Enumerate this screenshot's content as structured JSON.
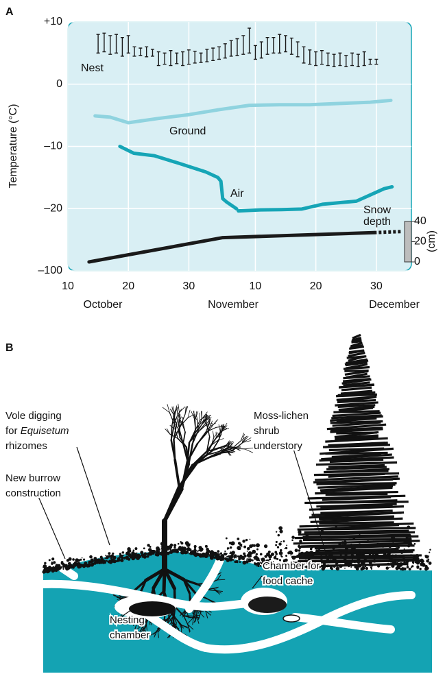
{
  "chart_data": {
    "type": "line",
    "panel_label": "A",
    "y_label": "Temperature (°C)",
    "y2_label": "(cm)",
    "xlim": [
      10,
      66.8
    ],
    "xticks": [
      10,
      20,
      30,
      {
        "value": 41,
        "label": "10"
      },
      {
        "value": 51,
        "label": "20"
      },
      {
        "value": 61,
        "label": "30"
      }
    ],
    "month_labels": [
      "October",
      "November",
      "December"
    ],
    "ylim": [
      -100,
      10
    ],
    "yticks": [
      {
        "value": 10,
        "label": "+10"
      },
      0,
      {
        "value": -10,
        "label": "–10"
      },
      {
        "value": -20,
        "label": "–20"
      },
      {
        "value": -100,
        "label": "–100"
      }
    ],
    "y2lim": [
      0,
      40
    ],
    "y2ticks": [
      0,
      20,
      40
    ],
    "grid": true,
    "plot_background": "#d9eff4",
    "series": [
      {
        "name": "Nest",
        "type": "range",
        "color": "#1a1a1a",
        "x": [
          15,
          16,
          17,
          18,
          19,
          20,
          21,
          22,
          23,
          24,
          25,
          26,
          27,
          28,
          29,
          30,
          31,
          32,
          33,
          34,
          35,
          36,
          37,
          38,
          39,
          40,
          41,
          42,
          43,
          44,
          45,
          46,
          47,
          48,
          49,
          50,
          51,
          52,
          53,
          54,
          55,
          56,
          57,
          58,
          59,
          60,
          61
        ],
        "low": [
          5,
          5.2,
          4.8,
          5,
          4.5,
          5,
          4.5,
          4.6,
          4.4,
          4.5,
          3,
          3.2,
          3,
          3.3,
          3,
          3.2,
          3.4,
          3.5,
          3.6,
          3.8,
          4,
          4.2,
          4.5,
          4.6,
          4.8,
          5,
          4,
          4.2,
          4.8,
          5,
          5,
          5.2,
          4.8,
          4.4,
          3.4,
          3.2,
          3,
          3.2,
          3,
          2.8,
          3,
          2.8,
          3,
          2.8,
          3,
          3.2,
          3.2
        ],
        "high": [
          8,
          8.2,
          7.8,
          8,
          7.5,
          7.8,
          6,
          5.8,
          6,
          5.6,
          5.2,
          5,
          5.4,
          5,
          5.2,
          5.5,
          5.3,
          5,
          5.6,
          5.8,
          6,
          6.5,
          7,
          7.3,
          7.8,
          9,
          6.2,
          6.8,
          7.5,
          7.5,
          8,
          7.8,
          7.4,
          6.8,
          6,
          5.5,
          5.2,
          5.4,
          5,
          4.8,
          5,
          4.6,
          5,
          4.8,
          5.2,
          4,
          4
        ]
      },
      {
        "name": "Ground",
        "type": "line",
        "color": "#8fd3df",
        "x": [
          14.5,
          17,
          20,
          25,
          30,
          35,
          40,
          45,
          50,
          55,
          60,
          63.4
        ],
        "values": [
          -5.1,
          -5.3,
          -6.2,
          -5.5,
          -4.9,
          -4.1,
          -3.4,
          -3.3,
          -3.3,
          -3.1,
          -2.9,
          -2.6
        ]
      },
      {
        "name": "Air",
        "type": "line",
        "color": "#16a5b6",
        "x": [
          18.6,
          20.9,
          24.3,
          28.3,
          32.8,
          34.8,
          35.3,
          35.6,
          36.2,
          37.9,
          null,
          38.2,
          41.9,
          45.3,
          48.7,
          52.1,
          55.5,
          57.7,
          60,
          62.3,
          63.6
        ],
        "values": [
          -10,
          -11.1,
          -11.5,
          -12.7,
          -14.1,
          -15,
          -15.6,
          -18.4,
          -18.9,
          -20.3,
          null,
          -23,
          -21.7,
          -21.3,
          -20.5,
          -19.3,
          -19,
          -18.8,
          -17.8,
          -16.8,
          -16.5
        ]
      },
      {
        "name": "Snow depth",
        "type": "line",
        "axis": "y2",
        "color": "#1a1a1a",
        "x": [
          13.5,
          35.6,
          60.6,
          65.1
        ],
        "values": [
          0,
          24,
          29,
          30
        ],
        "segment_styles": [
          "solid",
          "solid",
          "dashed"
        ]
      }
    ]
  },
  "panel_b": {
    "label": "B",
    "annotations": [
      {
        "lines": [
          "Vole digging",
          {
            "text": "for ",
            "italic": "Equisetum"
          },
          "rhizomes"
        ]
      },
      {
        "lines": [
          "New burrow",
          "construction"
        ]
      },
      {
        "lines": [
          "Moss-lichen",
          "shrub",
          "understory"
        ]
      },
      {
        "lines": [
          "Chamber for",
          "food cache"
        ]
      },
      {
        "lines": [
          "Nesting",
          "chamber"
        ]
      }
    ]
  }
}
